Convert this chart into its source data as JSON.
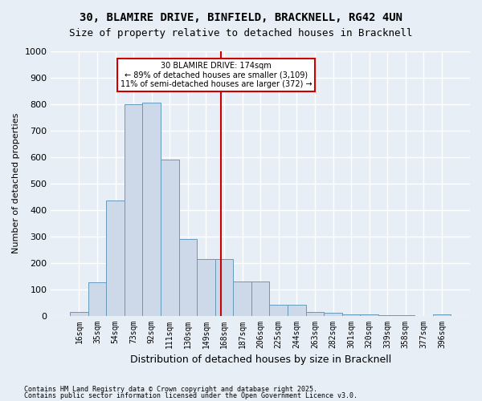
{
  "title1": "30, BLAMIRE DRIVE, BINFIELD, BRACKNELL, RG42 4UN",
  "title2": "Size of property relative to detached houses in Bracknell",
  "xlabel": "Distribution of detached houses by size in Bracknell",
  "ylabel": "Number of detached properties",
  "footnote1": "Contains HM Land Registry data © Crown copyright and database right 2025.",
  "footnote2": "Contains public sector information licensed under the Open Government Licence v3.0.",
  "annotation_title": "30 BLAMIRE DRIVE: 174sqm",
  "annotation_line1": "← 89% of detached houses are smaller (3,109)",
  "annotation_line2": "11% of semi-detached houses are larger (372) →",
  "property_size": 174,
  "bar_edges": [
    16,
    35,
    54,
    73,
    92,
    111,
    130,
    149,
    168,
    187,
    206,
    225,
    244,
    263,
    282,
    301,
    320,
    339,
    358,
    377,
    396
  ],
  "bar_heights": [
    15,
    125,
    435,
    800,
    805,
    590,
    290,
    215,
    215,
    130,
    130,
    40,
    40,
    15,
    10,
    5,
    5,
    2,
    2,
    0,
    5
  ],
  "bar_color": "#cdd9e8",
  "bar_edge_color": "#6699bb",
  "vline_color": "#cc0000",
  "annotation_box_color": "#cc0000",
  "background_color": "#e8eef5",
  "grid_color": "#ffffff",
  "ylim": [
    0,
    1000
  ],
  "yticks": [
    0,
    100,
    200,
    300,
    400,
    500,
    600,
    700,
    800,
    900,
    1000
  ]
}
